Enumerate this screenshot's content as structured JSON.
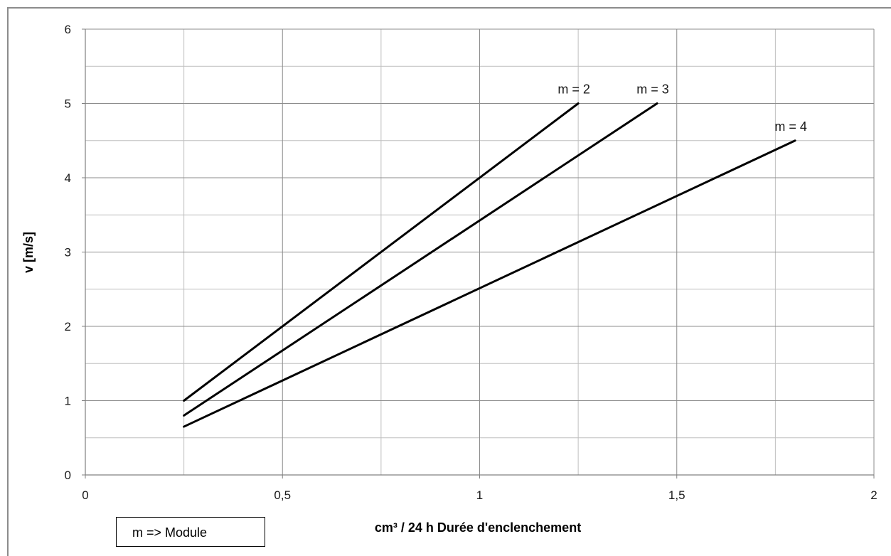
{
  "chart_data": {
    "type": "line",
    "xlabel": "cm³ / 24 h Durée d'enclenchement",
    "ylabel": "v [m/s]",
    "xlim": [
      0,
      2
    ],
    "ylim": [
      0,
      6
    ],
    "x_major_ticks": [
      0,
      0.5,
      1,
      1.5,
      2
    ],
    "x_tick_labels": [
      "0",
      "0,5",
      "1",
      "1,5",
      "2"
    ],
    "x_minor_gridlines": [
      0.25,
      0.75,
      1.25,
      1.75
    ],
    "y_major_ticks": [
      0,
      1,
      2,
      3,
      4,
      5,
      6
    ],
    "y_tick_labels": [
      "0",
      "1",
      "2",
      "3",
      "4",
      "5",
      "6"
    ],
    "y_minor_gridlines": [
      0.5,
      1.5,
      2.5,
      3.5,
      4.5,
      5.5
    ],
    "grid": true,
    "line_color": "#000000",
    "grid_color": "#bfbfbf",
    "series": [
      {
        "name": "m = 2",
        "x": [
          0.25,
          1.25
        ],
        "y": [
          1.0,
          5.0
        ]
      },
      {
        "name": "m = 3",
        "x": [
          0.25,
          1.45
        ],
        "y": [
          0.8,
          5.0
        ]
      },
      {
        "name": "m = 4",
        "x": [
          0.25,
          1.8
        ],
        "y": [
          0.65,
          4.5
        ]
      }
    ],
    "annotation": "m => Module"
  }
}
